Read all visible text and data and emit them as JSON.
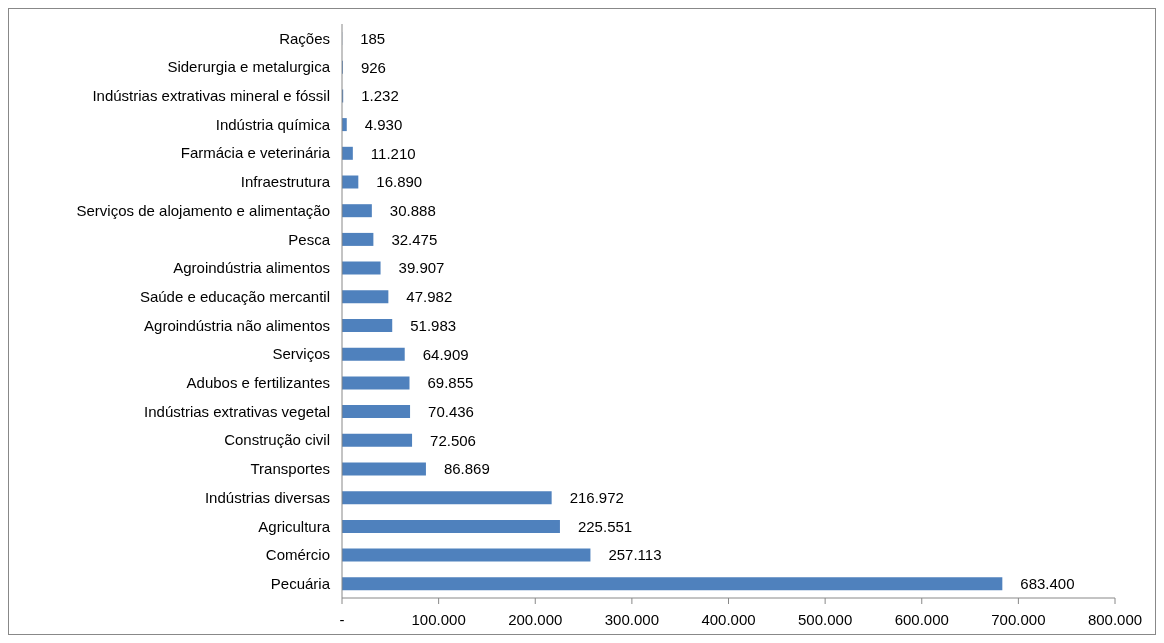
{
  "chart_data": {
    "type": "bar",
    "orientation": "horizontal",
    "categories": [
      "Rações",
      "Siderurgia e metalurgica",
      "Indústrias extrativas mineral e fóssil",
      "Indústria química",
      "Farmácia e veterinária",
      "Infraestrutura",
      "Serviços de alojamento e alimentação",
      "Pesca",
      "Agroindústria alimentos",
      "Saúde e educação mercantil",
      "Agroindústria não alimentos",
      "Serviços",
      "Adubos e fertilizantes",
      "Indústrias extrativas vegetal",
      "Construção civil",
      "Transportes",
      "Indústrias diversas",
      "Agricultura",
      "Comércio",
      "Pecuária"
    ],
    "values": [
      185,
      926,
      1232,
      4930,
      11210,
      16890,
      30888,
      32475,
      39907,
      47982,
      51983,
      64909,
      69855,
      70436,
      72506,
      86869,
      216972,
      225551,
      257113,
      683400
    ],
    "value_labels": [
      "185",
      "926",
      "1.232",
      "4.930",
      "11.210",
      "16.890",
      "30.888",
      "32.475",
      "39.907",
      "47.982",
      "51.983",
      "64.909",
      "69.855",
      "70.436",
      "72.506",
      "86.869",
      "216.972",
      "225.551",
      "257.113",
      "683.400"
    ],
    "color": "#4f81bd",
    "xlim": [
      0,
      800000
    ],
    "xticks": [
      {
        "value": 0,
        "label": "-"
      },
      {
        "value": 100000,
        "label": "100.000"
      },
      {
        "value": 200000,
        "label": "200.000"
      },
      {
        "value": 300000,
        "label": "300.000"
      },
      {
        "value": 400000,
        "label": "400.000"
      },
      {
        "value": 500000,
        "label": "500.000"
      },
      {
        "value": 600000,
        "label": "600.000"
      },
      {
        "value": 700000,
        "label": "700.000"
      },
      {
        "value": 800000,
        "label": "800.000"
      }
    ],
    "grid": false,
    "legend": false
  }
}
